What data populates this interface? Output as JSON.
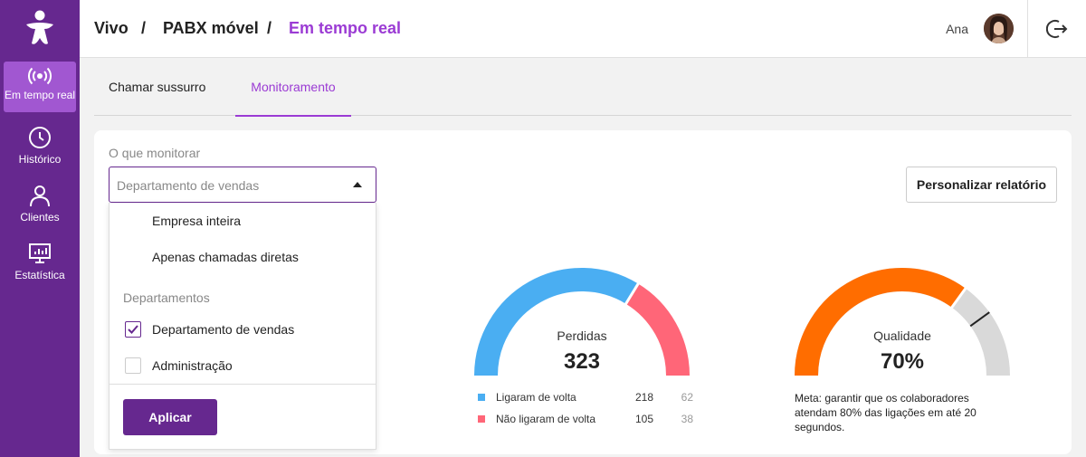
{
  "nav": {
    "items": [
      {
        "label": "Em tempo real",
        "icon": "broadcast-icon",
        "active": true
      },
      {
        "label": "Histórico",
        "icon": "clock-icon",
        "active": false
      },
      {
        "label": "Clientes",
        "icon": "user-icon",
        "active": false
      },
      {
        "label": "Estatística",
        "icon": "monitor-chart-icon",
        "active": false
      }
    ]
  },
  "breadcrumb": {
    "items": [
      "Vivo",
      "PABX móvel",
      "Em tempo real"
    ],
    "separator": "/"
  },
  "user": {
    "name": "Ana"
  },
  "tabs": [
    {
      "label": "Chamar sussurro",
      "active": false
    },
    {
      "label": "Monitoramento",
      "active": true
    }
  ],
  "monitor": {
    "label": "O que monitorar",
    "selected": "Departamento de vendas",
    "customize_button": "Personalizar relatório"
  },
  "dropdown": {
    "options": [
      {
        "label": "Empresa inteira"
      },
      {
        "label": "Apenas chamadas diretas"
      }
    ],
    "group_label": "Departamentos",
    "departments": [
      {
        "label": "Departamento de vendas",
        "checked": true
      },
      {
        "label": "Administração",
        "checked": false
      }
    ],
    "apply_button": "Aplicar"
  },
  "gauges": {
    "lost": {
      "label": "Perdidas",
      "value": "323",
      "legend": [
        {
          "label": "Ligaram de volta",
          "count": "218",
          "secondary": "62",
          "color": "#4aaef2"
        },
        {
          "label": "Não ligaram de volta",
          "count": "105",
          "secondary": "38",
          "color": "#ff6678"
        }
      ]
    },
    "quality": {
      "label": "Qualidade",
      "value": "70%",
      "fraction": 0.7,
      "target_fraction": 0.8,
      "note": "Meta: garantir que os colaboradores atendam 80% das ligações em até 20 segundos.",
      "fill_color": "#ff6d00",
      "track_color": "#d9d9d9"
    }
  },
  "colors": {
    "brand": "#66288f",
    "accent": "#9b3bd4"
  }
}
